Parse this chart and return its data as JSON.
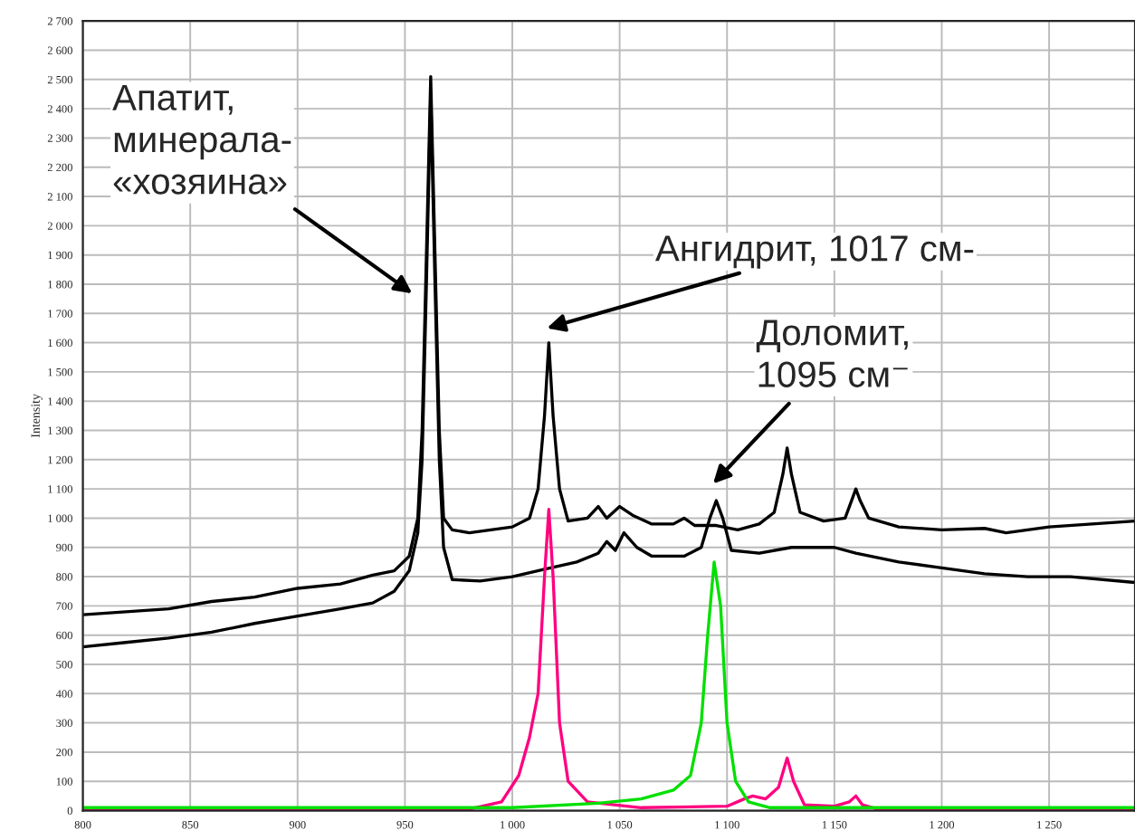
{
  "chart_data": {
    "type": "line",
    "ylabel": "Intensity",
    "xlim": [
      800,
      1290
    ],
    "ylim": [
      0,
      2700
    ],
    "xticks": [
      800,
      850,
      900,
      950,
      {
        "value": 1000,
        "label": "1 000"
      },
      {
        "value": 1050,
        "label": "1 050"
      },
      {
        "value": 1100,
        "label": "1 100"
      },
      {
        "value": 1150,
        "label": "1 150"
      },
      {
        "value": 1200,
        "label": "1 200"
      },
      {
        "value": 1250,
        "label": "1 250"
      }
    ],
    "yticks": [
      0,
      100,
      200,
      300,
      400,
      500,
      600,
      700,
      800,
      900,
      {
        "value": 1000,
        "label": "1 000"
      },
      {
        "value": 1100,
        "label": "1 100"
      },
      {
        "value": 1200,
        "label": "1 200"
      },
      {
        "value": 1300,
        "label": "1 300"
      },
      {
        "value": 1400,
        "label": "1 400"
      },
      {
        "value": 1500,
        "label": "1 500"
      },
      {
        "value": 1600,
        "label": "1 600"
      },
      {
        "value": 1700,
        "label": "1 700"
      },
      {
        "value": 1800,
        "label": "1 800"
      },
      {
        "value": 1900,
        "label": "1 900"
      },
      {
        "value": 2000,
        "label": "2 000"
      },
      {
        "value": 2100,
        "label": "2 100"
      },
      {
        "value": 2200,
        "label": "2 200"
      },
      {
        "value": 2300,
        "label": "2 300"
      },
      {
        "value": 2400,
        "label": "2 400"
      },
      {
        "value": 2500,
        "label": "2 500"
      },
      {
        "value": 2600,
        "label": "2 600"
      },
      {
        "value": 2700,
        "label": "2 700"
      }
    ],
    "grid": true,
    "legend": false,
    "marker": "none",
    "line_style": "solid",
    "series": [
      {
        "color": "#000000",
        "x": [
          800,
          820,
          840,
          860,
          880,
          900,
          920,
          935,
          945,
          952,
          956,
          958,
          960,
          962,
          964,
          966,
          968,
          972,
          980,
          1000,
          1008,
          1012,
          1015,
          1017,
          1019,
          1022,
          1026,
          1035,
          1040,
          1044,
          1050,
          1056,
          1065,
          1075,
          1080,
          1085,
          1095,
          1105,
          1115,
          1122,
          1126,
          1128,
          1130,
          1134,
          1145,
          1155,
          1158,
          1160,
          1162,
          1166,
          1180,
          1200,
          1220,
          1230,
          1250,
          1270,
          1290
        ],
        "values": [
          670,
          680,
          690,
          715,
          730,
          760,
          775,
          805,
          820,
          870,
          1000,
          1300,
          1900,
          2510,
          1900,
          1300,
          1000,
          960,
          950,
          970,
          1000,
          1100,
          1350,
          1600,
          1350,
          1100,
          990,
          1000,
          1040,
          1000,
          1040,
          1010,
          980,
          980,
          1000,
          975,
          975,
          960,
          980,
          1020,
          1150,
          1240,
          1150,
          1020,
          990,
          1000,
          1060,
          1100,
          1060,
          1000,
          970,
          960,
          965,
          950,
          970,
          980,
          990
        ]
      },
      {
        "color": "#000000",
        "x": [
          800,
          820,
          840,
          860,
          880,
          900,
          920,
          935,
          945,
          952,
          956,
          958,
          960,
          962,
          964,
          966,
          968,
          972,
          985,
          1000,
          1015,
          1030,
          1040,
          1044,
          1048,
          1052,
          1058,
          1065,
          1080,
          1088,
          1092,
          1095,
          1098,
          1102,
          1115,
          1130,
          1150,
          1160,
          1180,
          1200,
          1220,
          1240,
          1260,
          1290
        ],
        "values": [
          560,
          575,
          590,
          610,
          640,
          665,
          690,
          710,
          750,
          820,
          950,
          1200,
          1800,
          2450,
          1800,
          1200,
          900,
          790,
          785,
          800,
          825,
          850,
          880,
          920,
          890,
          950,
          900,
          870,
          870,
          900,
          1000,
          1060,
          1000,
          890,
          880,
          900,
          900,
          880,
          850,
          830,
          810,
          800,
          800,
          780
        ]
      },
      {
        "color": "#ff0080",
        "x": [
          800,
          980,
          995,
          1003,
          1008,
          1012,
          1015,
          1017,
          1019,
          1022,
          1026,
          1035,
          1060,
          1100,
          1108,
          1112,
          1118,
          1124,
          1128,
          1131,
          1136,
          1150,
          1157,
          1160,
          1163,
          1170,
          1290
        ],
        "values": [
          0,
          5,
          30,
          120,
          250,
          400,
          800,
          1030,
          800,
          300,
          100,
          30,
          10,
          15,
          40,
          50,
          40,
          80,
          180,
          100,
          20,
          15,
          30,
          50,
          20,
          5,
          5
        ]
      },
      {
        "color": "#00e000",
        "x": [
          800,
          1000,
          1040,
          1060,
          1075,
          1083,
          1088,
          1091,
          1094,
          1097,
          1100,
          1104,
          1110,
          1120,
          1290
        ],
        "values": [
          10,
          10,
          25,
          40,
          70,
          120,
          300,
          600,
          850,
          700,
          300,
          100,
          30,
          10,
          10
        ]
      }
    ],
    "annotations": [
      "Апатит,\nминерала-\n«хозяина»",
      "Ангидрит, 1017 см-",
      "Доломит,\n1095 см⁻"
    ]
  }
}
